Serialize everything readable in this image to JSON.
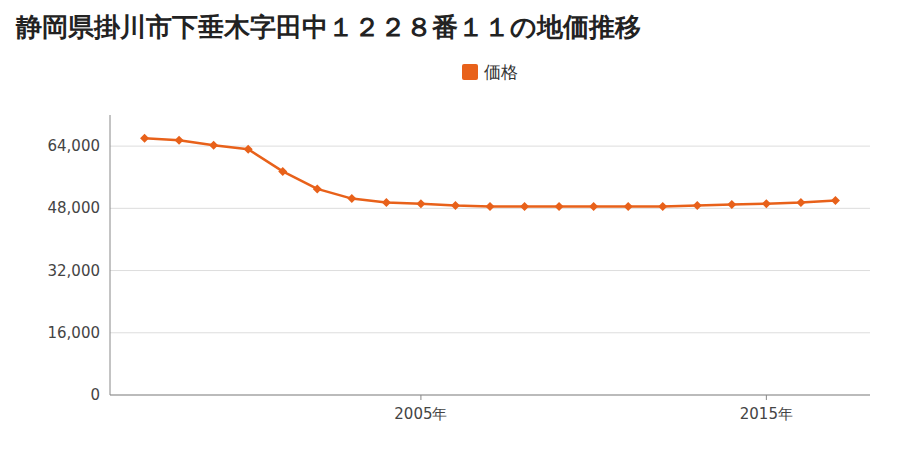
{
  "chart_data": {
    "type": "line",
    "title": "静岡県掛川市下垂木字田中１２２８番１１の地価推移",
    "x": [
      1997,
      1998,
      1999,
      2000,
      2001,
      2002,
      2003,
      2004,
      2005,
      2006,
      2007,
      2008,
      2009,
      2010,
      2011,
      2012,
      2013,
      2014,
      2015,
      2016,
      2017
    ],
    "series": [
      {
        "name": "価格",
        "color": "#e8611a",
        "marker": "diamond",
        "values": [
          66000,
          65500,
          64200,
          63200,
          57500,
          53000,
          50500,
          49500,
          49200,
          48700,
          48500,
          48500,
          48500,
          48500,
          48500,
          48500,
          48700,
          49000,
          49200,
          49500,
          50000
        ]
      }
    ],
    "xlim": [
      1996,
      2018
    ],
    "xticks": [
      {
        "value": 2005,
        "label": "2005年"
      },
      {
        "value": 2015,
        "label": "2015年"
      }
    ],
    "ylim": [
      0,
      72000
    ],
    "yticks": [
      0,
      {
        "value": 16000,
        "label": "16,000"
      },
      {
        "value": 32000,
        "label": "32,000"
      },
      {
        "value": 48000,
        "label": "48,000"
      },
      {
        "value": 64000,
        "label": "64,000"
      }
    ],
    "grid": true,
    "legend": "top"
  }
}
